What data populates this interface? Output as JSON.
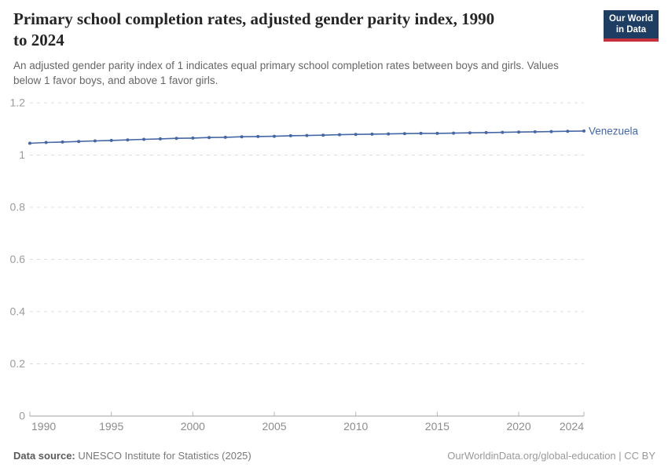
{
  "header": {
    "title_lines": [
      "Primary school completion rates, adjusted gender parity index, 1990",
      "to 2024"
    ],
    "subtitle_lines": [
      "An adjusted gender parity index of 1 indicates equal primary school completion rates between boys and girls. Values",
      "below 1 favor boys, and above 1 favor girls."
    ],
    "logo_line1": "Our World",
    "logo_line2": "in Data",
    "logo_bg_color": "#1d3d63",
    "logo_accent_color": "#c4303c"
  },
  "chart_data": {
    "type": "line",
    "title": "Primary school completion rates, adjusted gender parity index, 1990 to 2024",
    "subtitle": "An adjusted gender parity index of 1 indicates equal primary school completion rates between boys and girls. Values below 1 favor boys, and above 1 favor girls.",
    "xlabel": "",
    "ylabel": "",
    "xlim": [
      1990,
      2024
    ],
    "ylim": [
      0,
      1.2
    ],
    "xticks": [
      1990,
      1995,
      2000,
      2005,
      2010,
      2015,
      2020,
      2024
    ],
    "yticks": [
      0,
      0.2,
      0.4,
      0.6,
      0.8,
      1,
      1.2
    ],
    "grid": "horizontal-dashed",
    "legend_position": "end-of-line-label",
    "x": [
      1990,
      1991,
      1992,
      1993,
      1994,
      1995,
      1996,
      1997,
      1998,
      1999,
      2000,
      2001,
      2002,
      2003,
      2004,
      2005,
      2006,
      2007,
      2008,
      2009,
      2010,
      2011,
      2012,
      2013,
      2014,
      2015,
      2016,
      2017,
      2018,
      2019,
      2020,
      2021,
      2022,
      2023,
      2024
    ],
    "series": [
      {
        "name": "Venezuela",
        "color": "#4467a5",
        "values": [
          1.045,
          1.048,
          1.05,
          1.052,
          1.054,
          1.056,
          1.058,
          1.06,
          1.062,
          1.064,
          1.065,
          1.067,
          1.068,
          1.07,
          1.071,
          1.072,
          1.074,
          1.075,
          1.076,
          1.078,
          1.079,
          1.08,
          1.081,
          1.082,
          1.083,
          1.083,
          1.084,
          1.085,
          1.086,
          1.087,
          1.088,
          1.089,
          1.09,
          1.091,
          1.092
        ]
      }
    ]
  },
  "footer": {
    "source_label": "Data source:",
    "source_value": "UNESCO Institute for Statistics (2025)",
    "link_text": "OurWorldinData.org/global-education | CC BY"
  }
}
